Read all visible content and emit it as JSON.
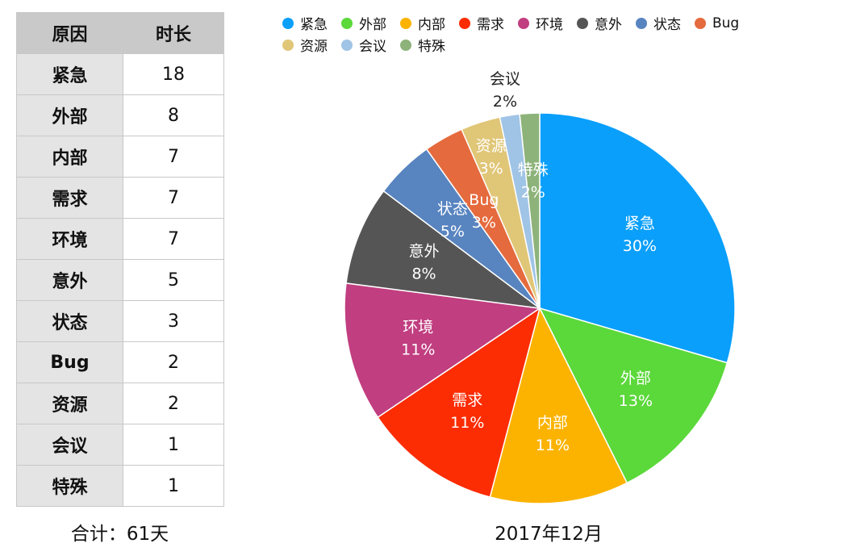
{
  "table": {
    "header": [
      "原因",
      "时长"
    ],
    "rows": [
      [
        "紧急",
        "18"
      ],
      [
        "外部",
        "8"
      ],
      [
        "内部",
        "7"
      ],
      [
        "需求",
        "7"
      ],
      [
        "环境",
        "7"
      ],
      [
        "意外",
        "5"
      ],
      [
        "状态",
        "3"
      ],
      [
        "Bug",
        "2"
      ],
      [
        "资源",
        "2"
      ],
      [
        "会议",
        "1"
      ],
      [
        "特殊",
        "1"
      ]
    ]
  },
  "total": "合计：61天",
  "chart_data": {
    "type": "pie",
    "title": "2017年12月",
    "legend_position": "top",
    "slices": [
      {
        "label": "紧急",
        "value": 18,
        "pct": "30%",
        "color": "#0a9ffb"
      },
      {
        "label": "外部",
        "value": 8,
        "pct": "13%",
        "color": "#5bd83a"
      },
      {
        "label": "内部",
        "value": 7,
        "pct": "11%",
        "color": "#fbb300"
      },
      {
        "label": "需求",
        "value": 7,
        "pct": "11%",
        "color": "#fc2c03"
      },
      {
        "label": "环境",
        "value": 7,
        "pct": "11%",
        "color": "#c13e80"
      },
      {
        "label": "意外",
        "value": 5,
        "pct": "8%",
        "color": "#555555"
      },
      {
        "label": "状态",
        "value": 3,
        "pct": "5%",
        "color": "#5884c0"
      },
      {
        "label": "Bug",
        "value": 2,
        "pct": "3%",
        "color": "#e56a3d"
      },
      {
        "label": "资源",
        "value": 2,
        "pct": "3%",
        "color": "#e0c677"
      },
      {
        "label": "会议",
        "value": 1,
        "pct": "2%",
        "color": "#a0c4e6"
      },
      {
        "label": "特殊",
        "value": 1,
        "pct": "2%",
        "color": "#8db37a"
      }
    ]
  }
}
